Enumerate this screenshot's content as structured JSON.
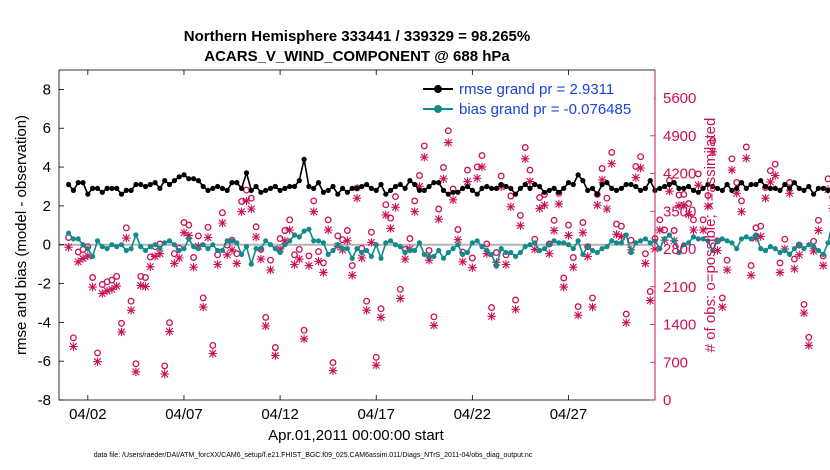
{
  "colors": {
    "rmse": "#000000",
    "bias": "#138a8a",
    "obs": "#cc1056",
    "zero_line": "#b3b3b3",
    "legend_text": "#1a44d8"
  },
  "chart_data": {
    "type": "line",
    "title_line1": "Northern Hemisphere 333441 / 339329 = 98.265%",
    "title_line2": "ACARS_V_WIND_COMPONENT @ 688 hPa",
    "xlabel": "Apr.01,2011 00:00:00 start",
    "ylabel_left": "rmse and bias (model - observation)",
    "ylabel_right": "# of obs: o=possible; ×=assimilated",
    "xlim": [
      0.5,
      31.5
    ],
    "ylim_left": [
      -8,
      9
    ],
    "ylim_right": [
      0,
      6120
    ],
    "x_ticks": [
      {
        "value": 2,
        "label": "04/02"
      },
      {
        "value": 7,
        "label": "04/07"
      },
      {
        "value": 12,
        "label": "04/12"
      },
      {
        "value": 17,
        "label": "04/17"
      },
      {
        "value": 22,
        "label": "04/22"
      },
      {
        "value": 27,
        "label": "04/27"
      }
    ],
    "y_ticks_left": [
      "-8",
      "-6",
      "-4",
      "-2",
      "0",
      "2",
      "4",
      "6",
      "8"
    ],
    "y_ticks_right": [
      "0",
      "700",
      "1400",
      "2100",
      "2800",
      "3500",
      "4200",
      "4900",
      "5600"
    ],
    "legend": {
      "rmse_label": "rmse grand pr = 2.9311",
      "bias_label": "bias grand pr = -0.076485"
    },
    "footnote": "data file: /Users/raeder/DAI/ATM_forcXX/CAM6_setup/f.e21.FHIST_BGC.f09_025.CAM6assim.011/Diags_NTrS_2011-04/obs_diag_output.nc",
    "series": [
      {
        "name": "rmse",
        "values": [
          3.1,
          2.8,
          3.2,
          3.2,
          2.6,
          2.9,
          2.9,
          2.7,
          2.9,
          2.9,
          2.9,
          2.6,
          2.8,
          2.8,
          3.1,
          3.1,
          3.0,
          3.1,
          3.2,
          2.9,
          3.3,
          3.1,
          3.3,
          3.5,
          3.6,
          3.4,
          3.4,
          3.3,
          3.0,
          2.8,
          2.9,
          3.0,
          2.9,
          2.8,
          3.2,
          3.2,
          2.9,
          3.7,
          2.8,
          3.0,
          2.7,
          2.8,
          2.9,
          3.0,
          2.8,
          2.9,
          3.0,
          3.0,
          3.3,
          4.4,
          3.0,
          2.9,
          3.2,
          2.7,
          2.8,
          3.0,
          2.6,
          2.9,
          2.7,
          2.9,
          2.9,
          3.0,
          3.1,
          2.9,
          2.8,
          3.1,
          2.6,
          2.8,
          3.0,
          3.1,
          2.9,
          3.3,
          3.1,
          2.8,
          2.8,
          3.0,
          3.2,
          3.2,
          2.8,
          2.6,
          2.7,
          2.7,
          2.9,
          3.0,
          2.8,
          2.6,
          2.9,
          3.0,
          2.9,
          2.9,
          3.1,
          3.0,
          2.9,
          2.6,
          2.9,
          3.1,
          2.9,
          3.1,
          3.0,
          2.7,
          2.8,
          2.9,
          2.7,
          2.9,
          3.2,
          3.1,
          3.6,
          3.3,
          2.8,
          2.9,
          2.6,
          3.1,
          3.2,
          2.9,
          2.8,
          2.9,
          3.1,
          3.1,
          3.0,
          2.8,
          2.9,
          3.3,
          2.8,
          2.9,
          3.0,
          3.1,
          3.2,
          2.9,
          2.9,
          3.0,
          2.8,
          2.7,
          2.9,
          3.1,
          3.0,
          2.9,
          2.8,
          3.1,
          2.8,
          2.9,
          3.2,
          2.9,
          3.1,
          3.1,
          3.3,
          3.0,
          2.9,
          2.9,
          2.8,
          3.1,
          2.9,
          3.2,
          2.9,
          2.8,
          3.0,
          2.6,
          2.9,
          2.9,
          2.8,
          2.8,
          3.2,
          3.3,
          4.4,
          3.5,
          3.2,
          3.5,
          3.1,
          3.0,
          2.9,
          2.7,
          2.8,
          3.0,
          2.9,
          2.8,
          2.7,
          2.9,
          3.0,
          2.9,
          2.8,
          2.9
        ]
      },
      {
        "name": "bias",
        "values": [
          0.6,
          0.3,
          0.3,
          0.0,
          -0.2,
          -0.6,
          0.2,
          -0.1,
          -0.2,
          0.0,
          -0.1,
          0.0,
          -0.3,
          -0.2,
          0.5,
          -0.1,
          -0.3,
          -0.1,
          0.0,
          -0.2,
          0.1,
          0.2,
          0.0,
          -0.3,
          -0.2,
          0.3,
          -0.1,
          -0.2,
          0.0,
          -0.2,
          0.0,
          -0.3,
          -0.3,
          0.2,
          0.2,
          0.1,
          -0.5,
          -0.1,
          -1.0,
          -0.2,
          -0.2,
          0.2,
          0.0,
          -0.2,
          -0.4,
          0.0,
          0.2,
          0.5,
          0.4,
          0.7,
          0.8,
          0.2,
          0.2,
          0.1,
          -0.5,
          -0.3,
          0.0,
          -0.2,
          -0.2,
          -0.7,
          -0.2,
          -0.4,
          -0.3,
          -0.6,
          0.0,
          -0.7,
          0.1,
          0.2,
          0.0,
          -0.1,
          -0.4,
          -0.3,
          -0.3,
          0.1,
          -0.5,
          -0.6,
          -0.6,
          -0.3,
          -0.7,
          -0.4,
          -0.2,
          0.0,
          -0.5,
          -0.4,
          0.1,
          0.2,
          -0.1,
          -0.3,
          -0.5,
          -1.1,
          -0.2,
          -0.4,
          -0.4,
          -0.6,
          -0.4,
          -0.1,
          0.0,
          0.1,
          -0.3,
          -0.2,
          0.0,
          0.2,
          0.1,
          0.1,
          0.0,
          -0.2,
          0.2,
          -0.5,
          -0.1,
          -0.3,
          -0.4,
          -0.2,
          -0.1,
          0.2,
          0.1,
          0.1,
          0.5,
          -0.4,
          0.1,
          0.2,
          0.3,
          0.1,
          0.2,
          -0.2,
          0.3,
          0.5,
          0.2,
          -0.4,
          0.0,
          0.1,
          0.4,
          0.3,
          0.3,
          0.2,
          -0.3,
          0.2,
          0.3,
          0.2,
          0.1,
          -0.2,
          0.3,
          0.4,
          0.3,
          0.5,
          -0.2,
          -0.3,
          -0.1,
          -0.2,
          -0.4,
          -0.3,
          -0.5,
          -0.2,
          0.0,
          -0.2,
          0.0,
          -0.1,
          -0.3,
          -0.5,
          0.1,
          1.2,
          0.2,
          -0.4,
          -0.2,
          -0.1,
          0.0,
          -0.5,
          -0.3,
          -1.1,
          -0.3,
          -0.2,
          -0.4,
          0.3,
          -0.5,
          -0.4,
          -0.8,
          -0.4,
          -0.5
        ]
      },
      {
        "name": "obs_possible",
        "values": [
          2920,
          1060,
          2650,
          2700,
          2750,
          2180,
          780,
          2050,
          2100,
          2130,
          2200,
          1330,
          3100,
          1740,
          580,
          2200,
          2180,
          2560,
          2750,
          2800,
          540,
          1340,
          2620,
          2720,
          3200,
          3150,
          2550,
          2950,
          1800,
          3110,
          920,
          2600,
          3380,
          2780,
          2870,
          2620,
          3590,
          3800,
          3650,
          3120,
          2700,
          1440,
          2500,
          880,
          2900,
          3050,
          3250,
          2600,
          2700,
          1200,
          2580,
          3600,
          2660,
          2450,
          3250,
          600,
          2950,
          2880,
          3050,
          2400,
          3840,
          2720,
          1740,
          3020,
          700,
          1600,
          3530,
          3280,
          3680,
          1960,
          2700,
          2900,
          3600,
          4070,
          4620,
          2680,
          1450,
          3450,
          4220,
          4900,
          3820,
          3070,
          2650,
          4170,
          2540,
          4230,
          4440,
          2800,
          1620,
          2640,
          4060,
          2600,
          3690,
          1760,
          3330,
          4590,
          4170,
          2890,
          3660,
          3720,
          2800,
          3240,
          3740,
          2170,
          3150,
          2550,
          1640,
          3200,
          2750,
          1800,
          3720,
          4200,
          3650,
          4500,
          3170,
          3130,
          1500,
          2870,
          4240,
          4420,
          2620,
          1920,
          2900,
          3250,
          3060,
          3980,
          3050,
          3710,
          3720,
          3550,
          3250,
          4100,
          3250,
          3700,
          4720,
          2860,
          1800,
          2500,
          4380,
          3940,
          3600,
          4600,
          2400,
          3100,
          3130,
          3850,
          4160,
          4280,
          2450,
          2890,
          3940,
          2520,
          2780,
          1680,
          1070,
          2850,
          3240,
          2580,
          4010,
          3660,
          2180,
          2600,
          3600,
          2200,
          4910,
          2890,
          2600,
          4130,
          2690,
          2550,
          4280,
          3850,
          3630,
          1800,
          3990,
          4150,
          4100,
          1640,
          2930,
          2700,
          3790,
          3830,
          3870,
          0
        ],
        "marker": "o"
      },
      {
        "name": "obs_assimilated",
        "values": [
          2870,
          1030,
          2600,
          2660,
          2710,
          2130,
          750,
          2010,
          2060,
          2090,
          2150,
          1300,
          3040,
          1700,
          560,
          2160,
          2140,
          2510,
          2700,
          2750,
          520,
          1310,
          2570,
          2670,
          3140,
          3090,
          2500,
          2890,
          1760,
          3050,
          900,
          2550,
          3320,
          2730,
          2820,
          2570,
          3530,
          3730,
          3580,
          3060,
          2650,
          1410,
          2450,
          860,
          2840,
          2990,
          3190,
          2550,
          2650,
          1170,
          2530,
          3530,
          2610,
          2400,
          3190,
          580,
          2890,
          2820,
          2990,
          2350,
          3780,
          2670,
          1700,
          2960,
          680,
          1570,
          3470,
          3220,
          3610,
          1920,
          2650,
          2840,
          3530,
          4000,
          4540,
          2630,
          1420,
          3390,
          4140,
          4810,
          3750,
          3010,
          2600,
          4090,
          2490,
          4150,
          4360,
          2750,
          1590,
          2590,
          3990,
          2550,
          3620,
          1720,
          3270,
          4510,
          4090,
          2830,
          3590,
          3650,
          2750,
          3180,
          3670,
          2130,
          3090,
          2500,
          1610,
          3140,
          2700,
          1760,
          3650,
          4120,
          3580,
          4420,
          3110,
          3070,
          1470,
          2820,
          4160,
          4340,
          2570,
          1880,
          2840,
          3190,
          3000,
          3910,
          2990,
          3640,
          3650,
          3480,
          3190,
          4020,
          3190,
          3630,
          4640,
          2810,
          1760,
          2450,
          4300,
          3870,
          3530,
          4520,
          2350,
          3040,
          3070,
          3780,
          4080,
          4200,
          2400,
          2840,
          3870,
          2470,
          2730,
          1650,
          1050,
          2800,
          3180,
          2530,
          3940,
          3590,
          2140,
          2550,
          3530,
          2160,
          4820,
          2840,
          2550,
          4050,
          2640,
          2500,
          4200,
          3780,
          3560,
          1760,
          3920,
          4070,
          4020,
          1610,
          2870,
          2650,
          3720,
          3760,
          3800,
          0
        ],
        "marker": "x"
      }
    ]
  }
}
